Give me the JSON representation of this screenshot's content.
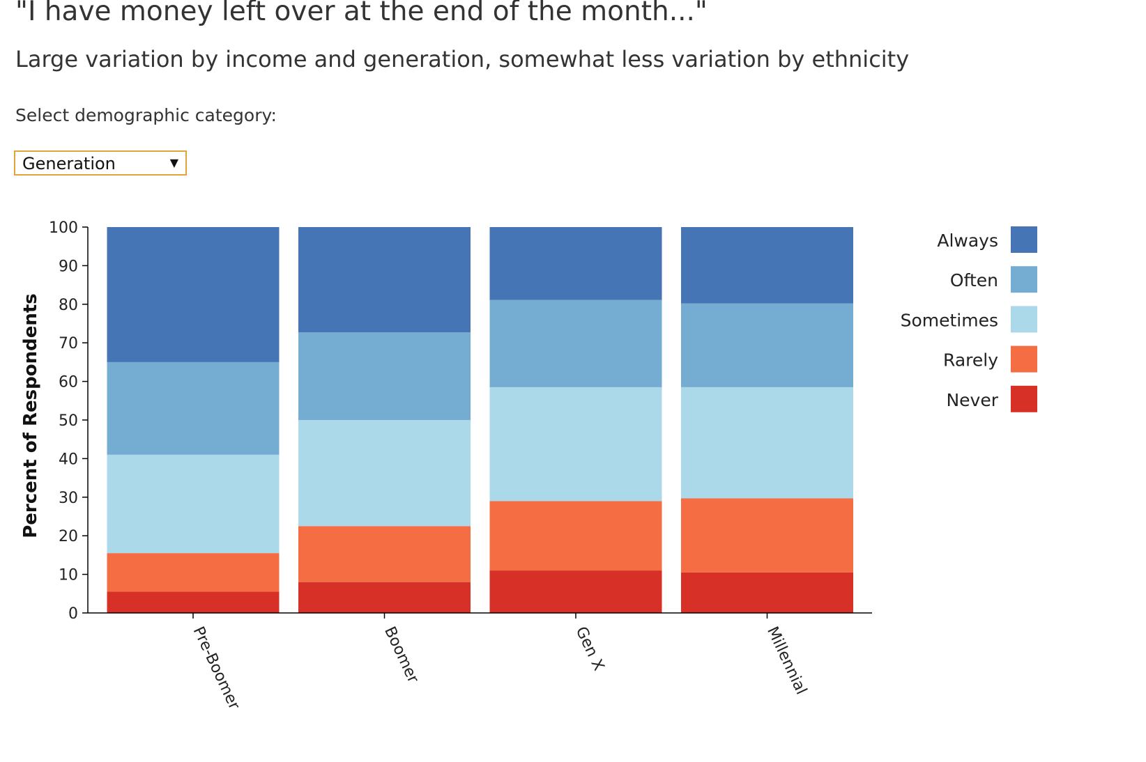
{
  "header": {
    "title": "\"I have money left over at the end of the month...\"",
    "subtitle": "Large variation by income and generation, somewhat less variation by ethnicity"
  },
  "controls": {
    "select_label": "Select demographic category:",
    "selected_category": "Generation"
  },
  "chart_data": {
    "type": "bar",
    "stacked": true,
    "categories": [
      "Pre-Boomer",
      "Boomer",
      "Gen X",
      "Millennial"
    ],
    "series": [
      {
        "name": "Never",
        "color": "#d73027",
        "values": [
          5.5,
          8,
          11,
          10.5
        ]
      },
      {
        "name": "Rarely",
        "color": "#f46d43",
        "values": [
          10,
          14.5,
          18,
          19.2
        ]
      },
      {
        "name": "Sometimes",
        "color": "#abd9e9",
        "values": [
          25.5,
          27.5,
          29.5,
          28.8
        ]
      },
      {
        "name": "Often",
        "color": "#74add1",
        "values": [
          24,
          22.7,
          22.6,
          21.7
        ]
      },
      {
        "name": "Always",
        "color": "#4575b4",
        "values": [
          35,
          27.3,
          18.9,
          19.8
        ]
      }
    ],
    "legend_order": [
      "Always",
      "Often",
      "Sometimes",
      "Rarely",
      "Never"
    ],
    "legend_position": "right",
    "ylabel": "Percent of Respondents",
    "xlabel": "",
    "ylim": [
      0,
      100
    ],
    "yticks": [
      0,
      10,
      20,
      30,
      40,
      50,
      60,
      70,
      80,
      90,
      100
    ],
    "grid": false
  }
}
